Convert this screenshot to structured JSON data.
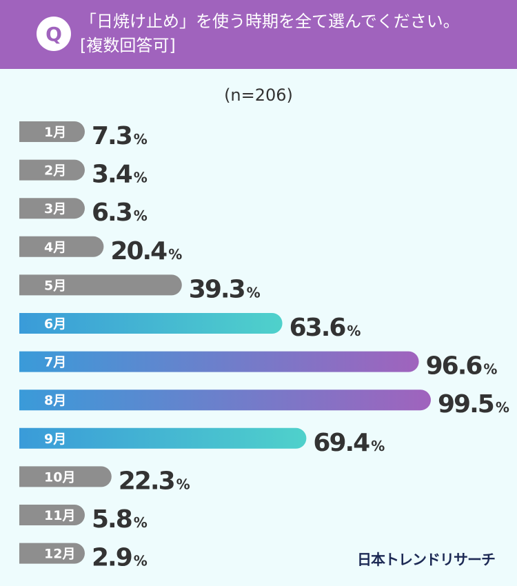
{
  "question": {
    "badge": "Q",
    "line1": "「日焼け止め」を使う時期を全て選んでください。",
    "line2": "[複数回答可]"
  },
  "sample_label": "(n=206)",
  "brand": "日本トレンドリサーチ",
  "colors": {
    "header": "#a063bd",
    "background": "#eefcfd",
    "bar_default": "#8e8e8e",
    "bar_highlight_start": "#3a9bd9",
    "bar_highlight_teal": "#4fd1cb",
    "bar_highlight_purple": "#a063bd",
    "value_text": "#333333"
  },
  "chart_data": {
    "type": "bar",
    "orientation": "horizontal",
    "unit": "%",
    "categories": [
      "1月",
      "2月",
      "3月",
      "4月",
      "5月",
      "6月",
      "7月",
      "8月",
      "9月",
      "10月",
      "11月",
      "12月"
    ],
    "values": [
      7.3,
      3.4,
      6.3,
      20.4,
      39.3,
      63.6,
      96.6,
      99.5,
      69.4,
      22.3,
      5.8,
      2.9
    ],
    "value_labels": [
      "7.3",
      "3.4",
      "6.3",
      "20.4",
      "39.3",
      "63.6",
      "96.6",
      "99.5",
      "69.4",
      "22.3",
      "5.8",
      "2.9"
    ],
    "highlight": [
      "none",
      "none",
      "none",
      "none",
      "none",
      "teal",
      "purple",
      "purple",
      "teal",
      "none",
      "none",
      "none"
    ],
    "xlim": [
      0,
      100
    ],
    "grid": false,
    "legend": "none"
  }
}
